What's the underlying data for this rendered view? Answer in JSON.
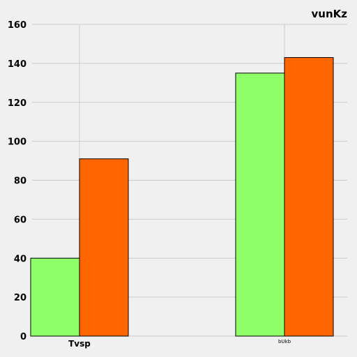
{
  "chart_data": {
    "type": "bar",
    "title": "vunKz",
    "categories": [
      "Tvsp",
      "bUkb"
    ],
    "series": [
      {
        "values": [
          40,
          135
        ],
        "color": "#8fff6a"
      },
      {
        "values": [
          91,
          143
        ],
        "color": "#ff6600"
      }
    ],
    "ylim": [
      0,
      160
    ],
    "yticks": [
      0,
      20,
      40,
      60,
      80,
      100,
      120,
      140,
      160
    ],
    "grid": true,
    "legend": "none",
    "background": "#f0f0f0",
    "grid_color": "#cbcbcb"
  }
}
